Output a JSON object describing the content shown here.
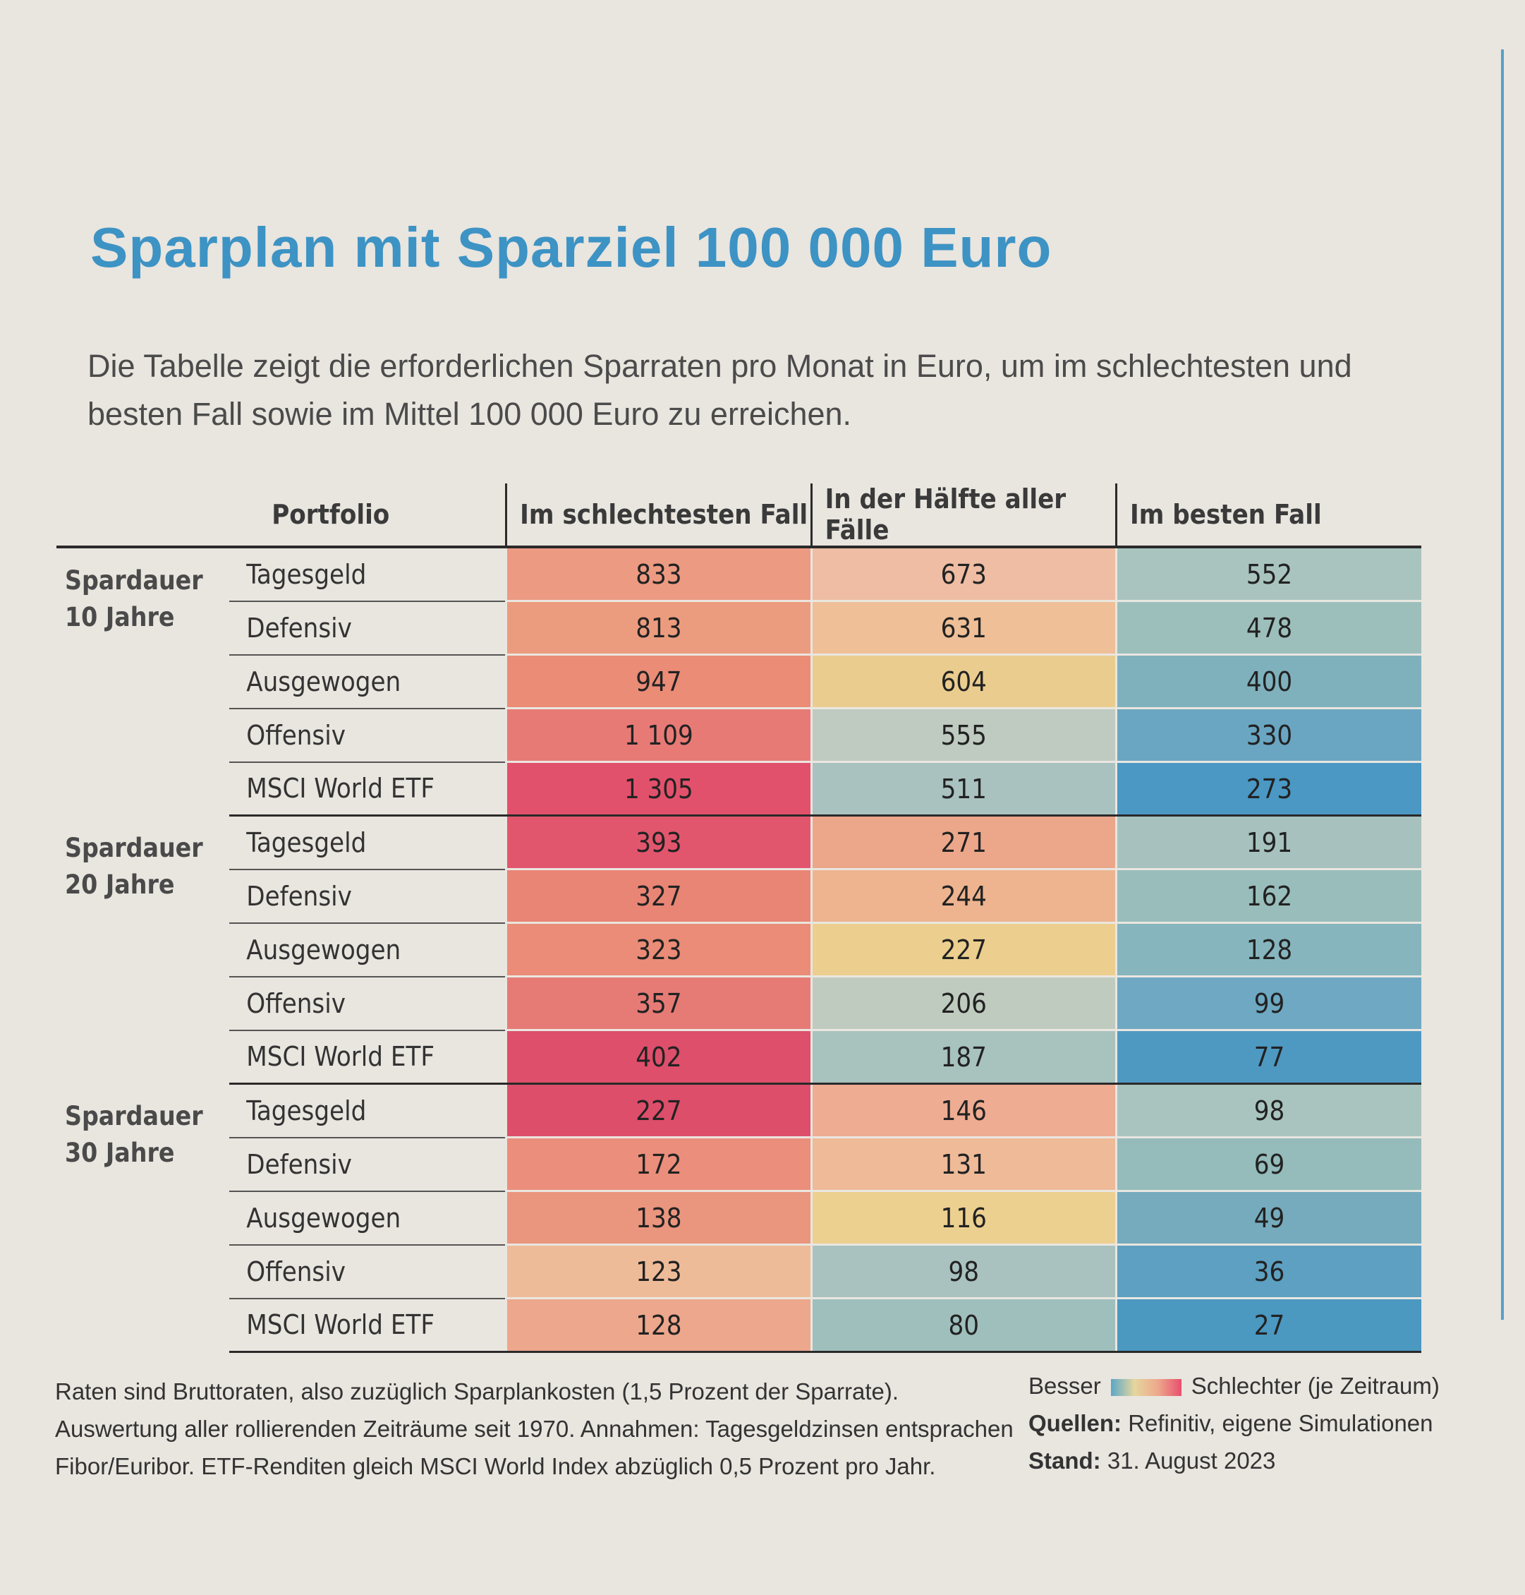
{
  "title": "Sparplan mit Sparziel 100 000 Euro",
  "subtitle": "Die Tabelle zeigt die erforderlichen Sparraten pro Monat in Euro, um im schlechtesten und besten Fall sowie im Mittel 100 000 Euro zu erreichen.",
  "table": {
    "headers": {
      "portfolio": "Portfolio",
      "worst": "Im schlechtesten Fall",
      "median": "In der Hälfte aller Fälle",
      "best": "Im besten Fall"
    },
    "groups": [
      {
        "label_line1": "Spardauer",
        "label_line2": "10 Jahre",
        "rows": [
          {
            "portfolio": "Tagesgeld",
            "worst": "833",
            "median": "673",
            "best": "552"
          },
          {
            "portfolio": "Defensiv",
            "worst": "813",
            "median": "631",
            "best": "478"
          },
          {
            "portfolio": "Ausgewogen",
            "worst": "947",
            "median": "604",
            "best": "400"
          },
          {
            "portfolio": "Offensiv",
            "worst": "1 109",
            "median": "555",
            "best": "330"
          },
          {
            "portfolio": "MSCI World ETF",
            "worst": "1 305",
            "median": "511",
            "best": "273"
          }
        ]
      },
      {
        "label_line1": "Spardauer",
        "label_line2": "20 Jahre",
        "rows": [
          {
            "portfolio": "Tagesgeld",
            "worst": "393",
            "median": "271",
            "best": "191"
          },
          {
            "portfolio": "Defensiv",
            "worst": "327",
            "median": "244",
            "best": "162"
          },
          {
            "portfolio": "Ausgewogen",
            "worst": "323",
            "median": "227",
            "best": "128"
          },
          {
            "portfolio": "Offensiv",
            "worst": "357",
            "median": "206",
            "best": "99"
          },
          {
            "portfolio": "MSCI World ETF",
            "worst": "402",
            "median": "187",
            "best": "77"
          }
        ]
      },
      {
        "label_line1": "Spardauer",
        "label_line2": "30 Jahre",
        "rows": [
          {
            "portfolio": "Tagesgeld",
            "worst": "227",
            "median": "146",
            "best": "98"
          },
          {
            "portfolio": "Defensiv",
            "worst": "172",
            "median": "131",
            "best": "69"
          },
          {
            "portfolio": "Ausgewogen",
            "worst": "138",
            "median": "116",
            "best": "49"
          },
          {
            "portfolio": "Offensiv",
            "worst": "123",
            "median": "98",
            "best": "36"
          },
          {
            "portfolio": "MSCI World ETF",
            "worst": "128",
            "median": "80",
            "best": "27"
          }
        ]
      }
    ]
  },
  "cell_colors": [
    [
      [
        "#ec9a82",
        "#eebda3",
        "#a9c4bf"
      ],
      [
        "#ec9c7e",
        "#efbf98",
        "#9dbfbb"
      ],
      [
        "#eb8c76",
        "#eacd8e",
        "#7fb1bd"
      ],
      [
        "#e87a76",
        "#bfcac0",
        "#6aa6c2"
      ],
      [
        "#e2516b",
        "#a9c2bf",
        "#4a98c3"
      ]
    ],
    [
      [
        "#e2566d",
        "#eca78a",
        "#a7c2be"
      ],
      [
        "#e98575",
        "#edb48f",
        "#99bdbb"
      ],
      [
        "#ea8c77",
        "#eccf8e",
        "#86b5bd"
      ],
      [
        "#e67b76",
        "#c0cbbf",
        "#6ea8c2"
      ],
      [
        "#dd4f6a",
        "#a8c2be",
        "#4e99c2"
      ]
    ],
    [
      [
        "#dd4e6a",
        "#eeac92",
        "#a9c4be"
      ],
      [
        "#eb8e7b",
        "#eeba98",
        "#95bbbb"
      ],
      [
        "#ea957e",
        "#ecd090",
        "#76abbd"
      ],
      [
        "#eebb99",
        "#a9c2bf",
        "#5da0c1"
      ],
      [
        "#eda78c",
        "#9fbfbc",
        "#4b98c1"
      ]
    ]
  ],
  "footnote": {
    "line1": "Raten sind Bruttoraten, also zuzüglich Sparplankosten (1,5 Prozent der Sparrate).",
    "line2": "Auswertung aller rollierenden Zeiträume seit 1970. Annahmen: Tagesgeldzinsen entsprachen",
    "line3": "Fibor/Euribor. ETF-Renditen gleich MSCI World Index abzüglich 0,5 Prozent pro Jahr."
  },
  "legend": {
    "better": "Besser",
    "worse": "Schlechter (je Zeitraum)",
    "sources_label": "Quellen:",
    "sources_value": "Refinitiv, eigene Simulationen",
    "date_label": "Stand:",
    "date_value": "31. August 2023"
  }
}
